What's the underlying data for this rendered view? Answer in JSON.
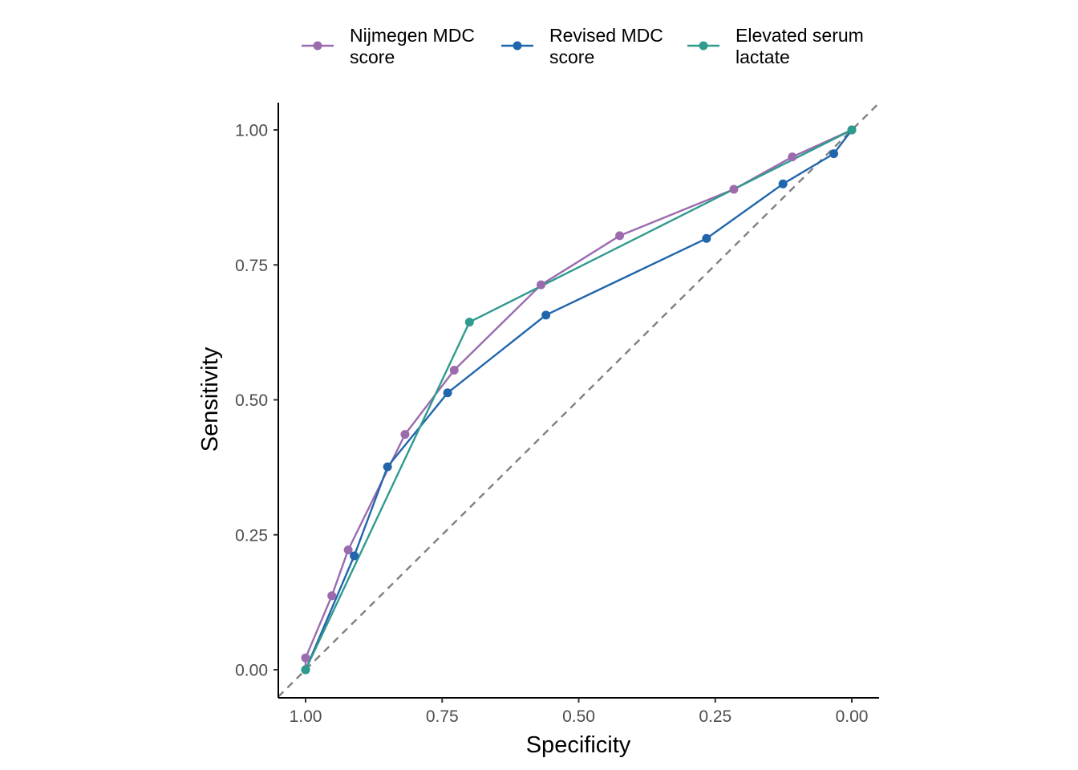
{
  "chart_data": {
    "type": "line",
    "title": "",
    "xlabel": "Specificity",
    "ylabel": "Sensitivity",
    "x_reversed": true,
    "xlim": [
      1.0,
      0.0
    ],
    "ylim": [
      0.0,
      1.0
    ],
    "xticks": [
      "1.00",
      "0.75",
      "0.50",
      "0.25",
      "0.00"
    ],
    "yticks": [
      "0.00",
      "0.25",
      "0.50",
      "0.75",
      "1.00"
    ],
    "grid": false,
    "legend_position": "top",
    "reference_line": "diagonal, dashed, grey",
    "series": [
      {
        "name": "Nijmegen MDC score",
        "color": "#9B6BAE",
        "points": [
          {
            "x": 1.0,
            "y": 0.0
          },
          {
            "x": 1.0,
            "y": 0.022
          },
          {
            "x": 0.952,
            "y": 0.137
          },
          {
            "x": 0.922,
            "y": 0.222
          },
          {
            "x": 0.818,
            "y": 0.436
          },
          {
            "x": 0.728,
            "y": 0.555
          },
          {
            "x": 0.569,
            "y": 0.713
          },
          {
            "x": 0.425,
            "y": 0.804
          },
          {
            "x": 0.216,
            "y": 0.89
          },
          {
            "x": 0.109,
            "y": 0.95
          },
          {
            "x": 0.0,
            "y": 1.0
          }
        ]
      },
      {
        "name": "Revised MDC score",
        "color": "#2166AC",
        "points": [
          {
            "x": 1.0,
            "y": 0.0
          },
          {
            "x": 0.911,
            "y": 0.211
          },
          {
            "x": 0.85,
            "y": 0.376
          },
          {
            "x": 0.74,
            "y": 0.513
          },
          {
            "x": 0.56,
            "y": 0.657
          },
          {
            "x": 0.266,
            "y": 0.799
          },
          {
            "x": 0.126,
            "y": 0.9
          },
          {
            "x": 0.033,
            "y": 0.956
          },
          {
            "x": 0.0,
            "y": 1.0
          }
        ]
      },
      {
        "name": "Elevated serum lactate",
        "color": "#2F9A8E",
        "points": [
          {
            "x": 1.0,
            "y": 0.0
          },
          {
            "x": 0.7,
            "y": 0.644
          },
          {
            "x": 0.0,
            "y": 1.0
          }
        ]
      }
    ]
  },
  "legend": {
    "items": [
      {
        "line1": "Nijmegen MDC",
        "line2": "score",
        "color": "#9B6BAE"
      },
      {
        "line1": "Revised MDC",
        "line2": "score",
        "color": "#2166AC"
      },
      {
        "line1": "Elevated serum",
        "line2": "lactate",
        "color": "#2F9A8E"
      }
    ]
  }
}
